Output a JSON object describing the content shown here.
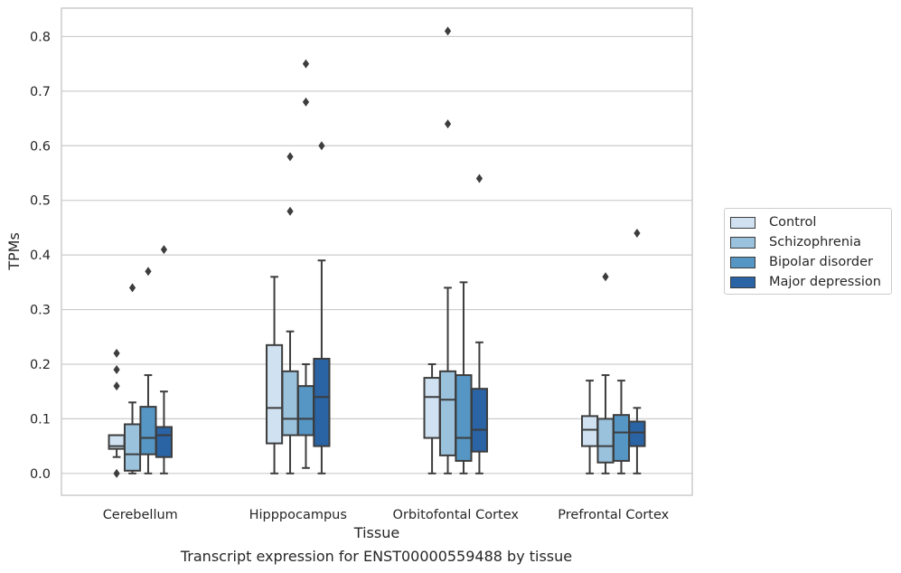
{
  "chart_data": {
    "type": "box",
    "title": "",
    "xlabel": "Tissue",
    "ylabel": "TPMs",
    "ylim": [
      -0.04,
      0.852
    ],
    "yticks": [
      "0.0",
      "0.1",
      "0.2",
      "0.3",
      "0.4",
      "0.5",
      "0.6",
      "0.7",
      "0.8"
    ],
    "grid": true,
    "legend_position": "right",
    "categories": [
      "Cerebellum",
      "Hipppocampus",
      "Orbitofontal Cortex",
      "Prefrontal Cortex"
    ],
    "series": [
      {
        "name": "Control",
        "color": "#d0e2f2",
        "boxes": [
          {
            "whislo": 0.03,
            "q1": 0.045,
            "med": 0.05,
            "q3": 0.07,
            "whishi": 0.07,
            "fliers": [
              0.22,
              0.19,
              0.16,
              0.0
            ]
          },
          {
            "whislo": 0.0,
            "q1": 0.055,
            "med": 0.12,
            "q3": 0.235,
            "whishi": 0.36,
            "fliers": []
          },
          {
            "whislo": 0.0,
            "q1": 0.065,
            "med": 0.14,
            "q3": 0.175,
            "whishi": 0.2,
            "fliers": []
          },
          {
            "whislo": 0.0,
            "q1": 0.05,
            "med": 0.08,
            "q3": 0.105,
            "whishi": 0.17,
            "fliers": []
          }
        ]
      },
      {
        "name": "Schizophrenia",
        "color": "#9ac2dd",
        "boxes": [
          {
            "whislo": 0.0,
            "q1": 0.005,
            "med": 0.035,
            "q3": 0.09,
            "whishi": 0.13,
            "fliers": [
              0.34
            ]
          },
          {
            "whislo": 0.0,
            "q1": 0.07,
            "med": 0.1,
            "q3": 0.187,
            "whishi": 0.26,
            "fliers": [
              0.58,
              0.48
            ]
          },
          {
            "whislo": 0.0,
            "q1": 0.033,
            "med": 0.135,
            "q3": 0.187,
            "whishi": 0.34,
            "fliers": [
              0.81,
              0.64
            ]
          },
          {
            "whislo": 0.0,
            "q1": 0.02,
            "med": 0.05,
            "q3": 0.1,
            "whishi": 0.18,
            "fliers": [
              0.36
            ]
          }
        ]
      },
      {
        "name": "Bipolar disorder",
        "color": "#5596c4",
        "boxes": [
          {
            "whislo": 0.0,
            "q1": 0.035,
            "med": 0.065,
            "q3": 0.122,
            "whishi": 0.18,
            "fliers": [
              0.37
            ]
          },
          {
            "whislo": 0.01,
            "q1": 0.07,
            "med": 0.1,
            "q3": 0.16,
            "whishi": 0.2,
            "fliers": [
              0.75,
              0.68
            ]
          },
          {
            "whislo": 0.0,
            "q1": 0.023,
            "med": 0.065,
            "q3": 0.18,
            "whishi": 0.35,
            "fliers": []
          },
          {
            "whislo": 0.0,
            "q1": 0.023,
            "med": 0.075,
            "q3": 0.107,
            "whishi": 0.17,
            "fliers": []
          }
        ]
      },
      {
        "name": "Major depression",
        "color": "#2a64a5",
        "boxes": [
          {
            "whislo": 0.0,
            "q1": 0.03,
            "med": 0.07,
            "q3": 0.085,
            "whishi": 0.15,
            "fliers": [
              0.41
            ]
          },
          {
            "whislo": 0.0,
            "q1": 0.05,
            "med": 0.14,
            "q3": 0.21,
            "whishi": 0.39,
            "fliers": [
              0.6
            ]
          },
          {
            "whislo": 0.0,
            "q1": 0.04,
            "med": 0.08,
            "q3": 0.155,
            "whishi": 0.24,
            "fliers": [
              0.54
            ]
          },
          {
            "whislo": 0.0,
            "q1": 0.05,
            "med": 0.075,
            "q3": 0.095,
            "whishi": 0.12,
            "fliers": [
              0.44
            ]
          }
        ]
      }
    ],
    "caption": "Transcript expression for ENST00000559488 by tissue"
  }
}
